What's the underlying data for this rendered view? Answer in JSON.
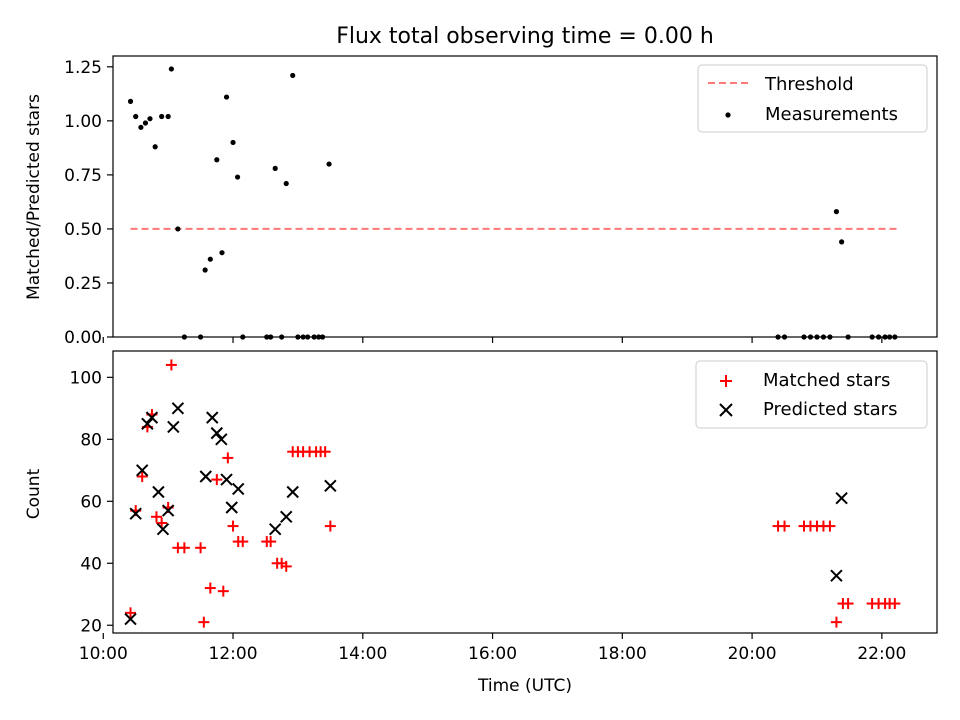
{
  "figure": {
    "title": "Flux total observing time = 0.00 h"
  },
  "chart_data": [
    {
      "type": "scatter",
      "ylabel": "Matched/Predicted stars",
      "xlim": [
        10.15,
        22.85
      ],
      "ylim": [
        0.0,
        1.3
      ],
      "yticks": [
        0.0,
        0.25,
        0.5,
        0.75,
        1.0,
        1.25
      ],
      "ytick_labels": [
        "0.00",
        "0.25",
        "0.50",
        "0.75",
        "1.00",
        "1.25"
      ],
      "xticks": [
        10,
        12,
        14,
        16,
        18,
        20,
        22
      ],
      "legend_position": "upper right",
      "threshold": {
        "label": "Threshold",
        "value": 0.5,
        "x_range": [
          10.42,
          22.25
        ],
        "color": "#ff7777"
      },
      "series": [
        {
          "name": "Measurements",
          "marker": "dot",
          "color": "#000000",
          "points": [
            [
              10.42,
              1.09
            ],
            [
              10.5,
              1.02
            ],
            [
              10.58,
              0.97
            ],
            [
              10.65,
              0.99
            ],
            [
              10.72,
              1.01
            ],
            [
              10.8,
              0.88
            ],
            [
              10.9,
              1.02
            ],
            [
              11.0,
              1.02
            ],
            [
              11.05,
              1.24
            ],
            [
              11.15,
              0.5
            ],
            [
              11.25,
              0.0
            ],
            [
              11.5,
              0.0
            ],
            [
              11.57,
              0.31
            ],
            [
              11.65,
              0.36
            ],
            [
              11.75,
              0.82
            ],
            [
              11.83,
              0.39
            ],
            [
              11.9,
              1.11
            ],
            [
              12.0,
              0.9
            ],
            [
              12.07,
              0.74
            ],
            [
              12.15,
              0.0
            ],
            [
              12.52,
              0.0
            ],
            [
              12.58,
              0.0
            ],
            [
              12.65,
              0.78
            ],
            [
              12.75,
              0.0
            ],
            [
              12.82,
              0.71
            ],
            [
              12.92,
              1.21
            ],
            [
              13.0,
              0.0
            ],
            [
              13.08,
              0.0
            ],
            [
              13.15,
              0.0
            ],
            [
              13.25,
              0.0
            ],
            [
              13.32,
              0.0
            ],
            [
              13.38,
              0.0
            ],
            [
              13.48,
              0.8
            ],
            [
              20.4,
              0.0
            ],
            [
              20.5,
              0.0
            ],
            [
              20.8,
              0.0
            ],
            [
              20.9,
              0.0
            ],
            [
              21.0,
              0.0
            ],
            [
              21.1,
              0.0
            ],
            [
              21.2,
              0.0
            ],
            [
              21.3,
              0.58
            ],
            [
              21.38,
              0.44
            ],
            [
              21.48,
              0.0
            ],
            [
              21.85,
              0.0
            ],
            [
              21.95,
              0.0
            ],
            [
              22.05,
              0.0
            ],
            [
              22.12,
              0.0
            ],
            [
              22.2,
              0.0
            ]
          ]
        }
      ]
    },
    {
      "type": "scatter",
      "xlabel": "Time (UTC)",
      "ylabel": "Count",
      "xlim": [
        10.15,
        22.85
      ],
      "ylim": [
        17.5,
        108.5
      ],
      "yticks": [
        20,
        40,
        60,
        80,
        100
      ],
      "xticks": [
        10,
        12,
        14,
        16,
        18,
        20,
        22
      ],
      "xtick_labels": [
        "10:00",
        "12:00",
        "14:00",
        "16:00",
        "18:00",
        "20:00",
        "22:00"
      ],
      "legend_position": "upper right",
      "series": [
        {
          "name": "Matched stars",
          "marker": "plus",
          "color": "#ff0000",
          "points": [
            [
              10.42,
              24
            ],
            [
              10.5,
              57
            ],
            [
              10.6,
              68
            ],
            [
              10.68,
              84
            ],
            [
              10.75,
              88
            ],
            [
              10.82,
              55
            ],
            [
              10.9,
              53
            ],
            [
              11.0,
              58
            ],
            [
              11.05,
              104
            ],
            [
              11.15,
              45
            ],
            [
              11.25,
              45
            ],
            [
              11.5,
              45
            ],
            [
              11.55,
              21
            ],
            [
              11.65,
              32
            ],
            [
              11.75,
              67
            ],
            [
              11.85,
              31
            ],
            [
              11.92,
              74
            ],
            [
              12.0,
              52
            ],
            [
              12.08,
              47
            ],
            [
              12.15,
              47
            ],
            [
              12.52,
              47
            ],
            [
              12.58,
              47
            ],
            [
              12.68,
              40
            ],
            [
              12.75,
              40
            ],
            [
              12.82,
              39
            ],
            [
              12.92,
              76
            ],
            [
              13.0,
              76
            ],
            [
              13.08,
              76
            ],
            [
              13.18,
              76
            ],
            [
              13.28,
              76
            ],
            [
              13.35,
              76
            ],
            [
              13.42,
              76
            ],
            [
              13.5,
              52
            ],
            [
              20.4,
              52
            ],
            [
              20.5,
              52
            ],
            [
              20.8,
              52
            ],
            [
              20.9,
              52
            ],
            [
              21.0,
              52
            ],
            [
              21.1,
              52
            ],
            [
              21.2,
              52
            ],
            [
              21.3,
              21
            ],
            [
              21.4,
              27
            ],
            [
              21.48,
              27
            ],
            [
              21.85,
              27
            ],
            [
              21.95,
              27
            ],
            [
              22.05,
              27
            ],
            [
              22.12,
              27
            ],
            [
              22.2,
              27
            ]
          ]
        },
        {
          "name": "Predicted stars",
          "marker": "cross",
          "color": "#000000",
          "points": [
            [
              10.42,
              22
            ],
            [
              10.5,
              56
            ],
            [
              10.6,
              70
            ],
            [
              10.68,
              85
            ],
            [
              10.75,
              87
            ],
            [
              10.85,
              63
            ],
            [
              10.92,
              51
            ],
            [
              11.0,
              57
            ],
            [
              11.08,
              84
            ],
            [
              11.15,
              90
            ],
            [
              11.58,
              68
            ],
            [
              11.68,
              87
            ],
            [
              11.75,
              82
            ],
            [
              11.82,
              80
            ],
            [
              11.9,
              67
            ],
            [
              11.98,
              58
            ],
            [
              12.08,
              64
            ],
            [
              12.65,
              51
            ],
            [
              12.82,
              55
            ],
            [
              12.92,
              63
            ],
            [
              13.5,
              65
            ],
            [
              21.3,
              36
            ],
            [
              21.38,
              61
            ]
          ]
        }
      ]
    }
  ]
}
